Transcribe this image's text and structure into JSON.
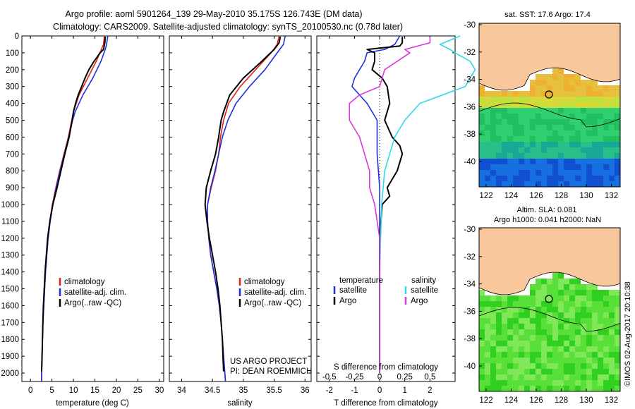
{
  "header": {
    "line1": "Argo profile: aoml 5901264_139 29-May-2010 35.175S 126.743E (DM data)",
    "line2": "Climatology: CARS2009. Satellite-adjusted climatology: synTS_20100530.nc (0.78d later)"
  },
  "colors": {
    "climatology": "#e0201c",
    "satellite": "#1f2fe0",
    "argo": "#000000",
    "salinity_satellite": "#30d8e8",
    "salinity_argo": "#d838d8",
    "land": "#f8c89c"
  },
  "right_panels": {
    "sst_title": "sat. SST: 17.6 Argo: 17.4",
    "sla_title1": "Altim. SLA: 0.081",
    "sla_title2": "Argo h1000: 0.041 h2000: NaN",
    "credit": "©IMOS 02-Aug-2017 20:10:38",
    "lat_ticks": [
      "-30",
      "-32",
      "-34",
      "-36",
      "-38",
      "-40"
    ],
    "lon_ticks": [
      "122",
      "124",
      "126",
      "128",
      "130",
      "132"
    ]
  },
  "project": {
    "line1": "US ARGO PROJECT",
    "line2": "PI: DEAN ROEMMICH"
  },
  "chart_data": [
    {
      "type": "line",
      "xlabel": "temperature (deg C)",
      "ylabel": "",
      "xlim": [
        -2,
        31
      ],
      "ylim": [
        2050,
        0
      ],
      "xticks": [
        "0",
        "5",
        "10",
        "15",
        "20",
        "25",
        "30"
      ],
      "yticks": [
        "0",
        "100",
        "200",
        "300",
        "400",
        "500",
        "600",
        "700",
        "800",
        "900",
        "1000",
        "1100",
        "1200",
        "1300",
        "1400",
        "1500",
        "1600",
        "1700",
        "1800",
        "1900",
        "2000"
      ],
      "legend": [
        "climatology",
        "satellite-adj. clim.",
        "Argo(..raw -QC)"
      ],
      "legend_position": "lower-right",
      "series": [
        {
          "name": "climatology",
          "depth": [
            0,
            50,
            80,
            150,
            250,
            350,
            450,
            500,
            600,
            700,
            800,
            900,
            1000,
            1100,
            1200,
            1300,
            1400,
            1500,
            1600,
            1700,
            1800,
            1900,
            2000,
            2050
          ],
          "values": [
            17.2,
            17.0,
            16.5,
            15.3,
            13.3,
            11.3,
            10.0,
            9.6,
            8.8,
            7.8,
            6.8,
            5.9,
            5.1,
            4.5,
            4.1,
            3.8,
            3.5,
            3.3,
            3.1,
            2.9,
            2.8,
            2.7,
            2.6,
            2.6
          ]
        },
        {
          "name": "satellite-adj. clim.",
          "depth": [
            0,
            50,
            80,
            150,
            250,
            350,
            450,
            500,
            600,
            700,
            800,
            900,
            1000,
            1100,
            1200,
            1300,
            1400,
            1500,
            1600,
            1700,
            1800,
            1900,
            2000,
            2050
          ],
          "values": [
            18.0,
            17.7,
            17.4,
            16.4,
            14.5,
            12.2,
            10.4,
            9.8,
            8.9,
            7.9,
            6.9,
            6.0,
            5.2,
            4.6,
            4.1,
            3.8,
            3.5,
            3.3,
            3.1,
            2.9,
            2.8,
            2.7,
            2.6,
            2.6
          ]
        },
        {
          "name": "Argo(..raw -QC)",
          "depth": [
            5,
            40,
            80,
            100,
            150,
            200,
            250,
            300,
            350,
            400,
            450,
            500,
            600,
            700,
            800,
            900,
            1000,
            1100,
            1200,
            1300,
            1400,
            1500,
            1600,
            1700,
            1800,
            1900,
            1990
          ],
          "values": [
            17.4,
            17.3,
            17.0,
            16.2,
            14.8,
            13.6,
            12.7,
            11.9,
            11.1,
            10.5,
            10.0,
            9.7,
            9.0,
            8.0,
            7.1,
            6.2,
            5.2,
            4.5,
            4.0,
            3.7,
            3.4,
            3.2,
            3.0,
            2.9,
            2.8,
            2.7,
            2.6
          ]
        }
      ]
    },
    {
      "type": "line",
      "xlabel": "salinity",
      "ylabel": "",
      "xlim": [
        33.8,
        36.1
      ],
      "ylim": [
        2050,
        0
      ],
      "xticks": [
        "34",
        "34.5",
        "35",
        "35.5",
        "36"
      ],
      "legend": [
        "climatology",
        "satellite-adj. clim.",
        "Argo(..raw -QC)"
      ],
      "legend_position": "lower-right",
      "series": [
        {
          "name": "climatology",
          "depth": [
            0,
            50,
            100,
            200,
            300,
            400,
            500,
            600,
            700,
            800,
            900,
            1000,
            1100,
            1200,
            1300,
            1400,
            1500,
            1600,
            1700,
            1800,
            1900,
            2000,
            2050
          ],
          "values": [
            35.58,
            35.55,
            35.45,
            35.2,
            34.95,
            34.76,
            34.68,
            34.63,
            34.6,
            34.55,
            34.48,
            34.42,
            34.42,
            34.44,
            34.47,
            34.52,
            34.57,
            34.61,
            34.64,
            34.66,
            34.68,
            34.7,
            34.71
          ]
        },
        {
          "name": "satellite-adj. clim.",
          "depth": [
            0,
            50,
            100,
            200,
            300,
            400,
            500,
            600,
            700,
            800,
            900,
            1000,
            1100,
            1200,
            1300,
            1400,
            1500,
            1600,
            1700,
            1800,
            1900,
            2000,
            2050
          ],
          "values": [
            35.68,
            35.65,
            35.55,
            35.35,
            35.1,
            34.88,
            34.75,
            34.66,
            34.6,
            34.54,
            34.47,
            34.42,
            34.42,
            34.44,
            34.47,
            34.52,
            34.57,
            34.61,
            34.64,
            34.66,
            34.68,
            34.7,
            34.71
          ]
        },
        {
          "name": "Argo(..raw -QC)",
          "depth": [
            5,
            40,
            80,
            150,
            250,
            350,
            450,
            500,
            600,
            700,
            800,
            900,
            1000,
            1100,
            1200,
            1300,
            1400,
            1500,
            1600,
            1700,
            1800,
            1900,
            1990
          ],
          "values": [
            35.6,
            35.58,
            35.5,
            35.3,
            35.0,
            34.78,
            34.68,
            34.64,
            34.6,
            34.55,
            34.47,
            34.4,
            34.38,
            34.41,
            34.45,
            34.5,
            34.55,
            34.59,
            34.62,
            34.64,
            34.66,
            34.67,
            34.68
          ]
        }
      ]
    },
    {
      "type": "line",
      "xlabel": "T difference from climatology",
      "title": "S difference from climatology",
      "xlim": [
        -2.5,
        3.0
      ],
      "ylim": [
        2050,
        0
      ],
      "xticks": [
        "-2",
        "-1",
        "0",
        "1",
        "2"
      ],
      "top_xticks": [
        "-0.5",
        "-0.25",
        "0",
        "0.25",
        "0.5"
      ],
      "legend": [
        "temperature",
        "satellite",
        "Argo",
        "salinity",
        "satellite",
        "Argo"
      ],
      "legend_position": "lower-center",
      "series": [
        {
          "name": "satellite",
          "depth": [
            0,
            50,
            80,
            100,
            150,
            200,
            250,
            300,
            400,
            500,
            600,
            700,
            800,
            900,
            1000,
            1200,
            1400,
            1600,
            1800,
            2000
          ],
          "values": [
            0.8,
            0.6,
            0.2,
            -0.5,
            -0.6,
            -0.8,
            -1.0,
            -1.1,
            -0.5,
            -0.1,
            -0.1,
            -0.1,
            -0.05,
            0,
            0,
            0,
            0,
            0,
            0,
            0
          ]
        },
        {
          "name": "Argo",
          "depth": [
            5,
            40,
            60,
            80,
            100,
            150,
            200,
            250,
            300,
            400,
            500,
            600,
            650,
            700,
            800,
            900,
            950,
            1000,
            1100,
            1200,
            1300,
            1400,
            1500,
            1600,
            1700,
            1800,
            1900,
            1990
          ],
          "values": [
            0.9,
            0.9,
            0.8,
            -0.5,
            -0.2,
            -0.2,
            -0.3,
            0.1,
            0.3,
            0.4,
            0.2,
            0.5,
            0.8,
            0.9,
            0.7,
            0.3,
            0.4,
            0.1,
            0.05,
            0,
            0,
            0,
            0,
            0,
            0,
            0,
            0,
            0
          ]
        },
        {
          "name": "satellite",
          "depth": [
            0,
            50,
            80,
            100,
            150,
            200,
            300,
            400,
            500,
            600,
            700,
            800,
            1000,
            1200,
            1400,
            1600,
            1800,
            2000
          ],
          "values": [
            0.8,
            0.6,
            0.7,
            0.75,
            0.9,
            0.95,
            0.85,
            0.4,
            0.25,
            0.15,
            0.1,
            0.05,
            0.02,
            0.01,
            0,
            0,
            0,
            0
          ]
        },
        {
          "name": "Argo",
          "depth": [
            5,
            40,
            80,
            100,
            200,
            300,
            350,
            400,
            500,
            600,
            700,
            800,
            900,
            1000,
            1200,
            1400,
            1600,
            1800,
            2000
          ],
          "values": [
            0.5,
            0.5,
            0.25,
            0.3,
            0.05,
            0.0,
            -0.2,
            -0.3,
            -0.3,
            -0.2,
            -0.15,
            -0.1,
            -0.1,
            -0.05,
            0,
            0,
            0,
            0,
            0
          ]
        }
      ]
    }
  ]
}
